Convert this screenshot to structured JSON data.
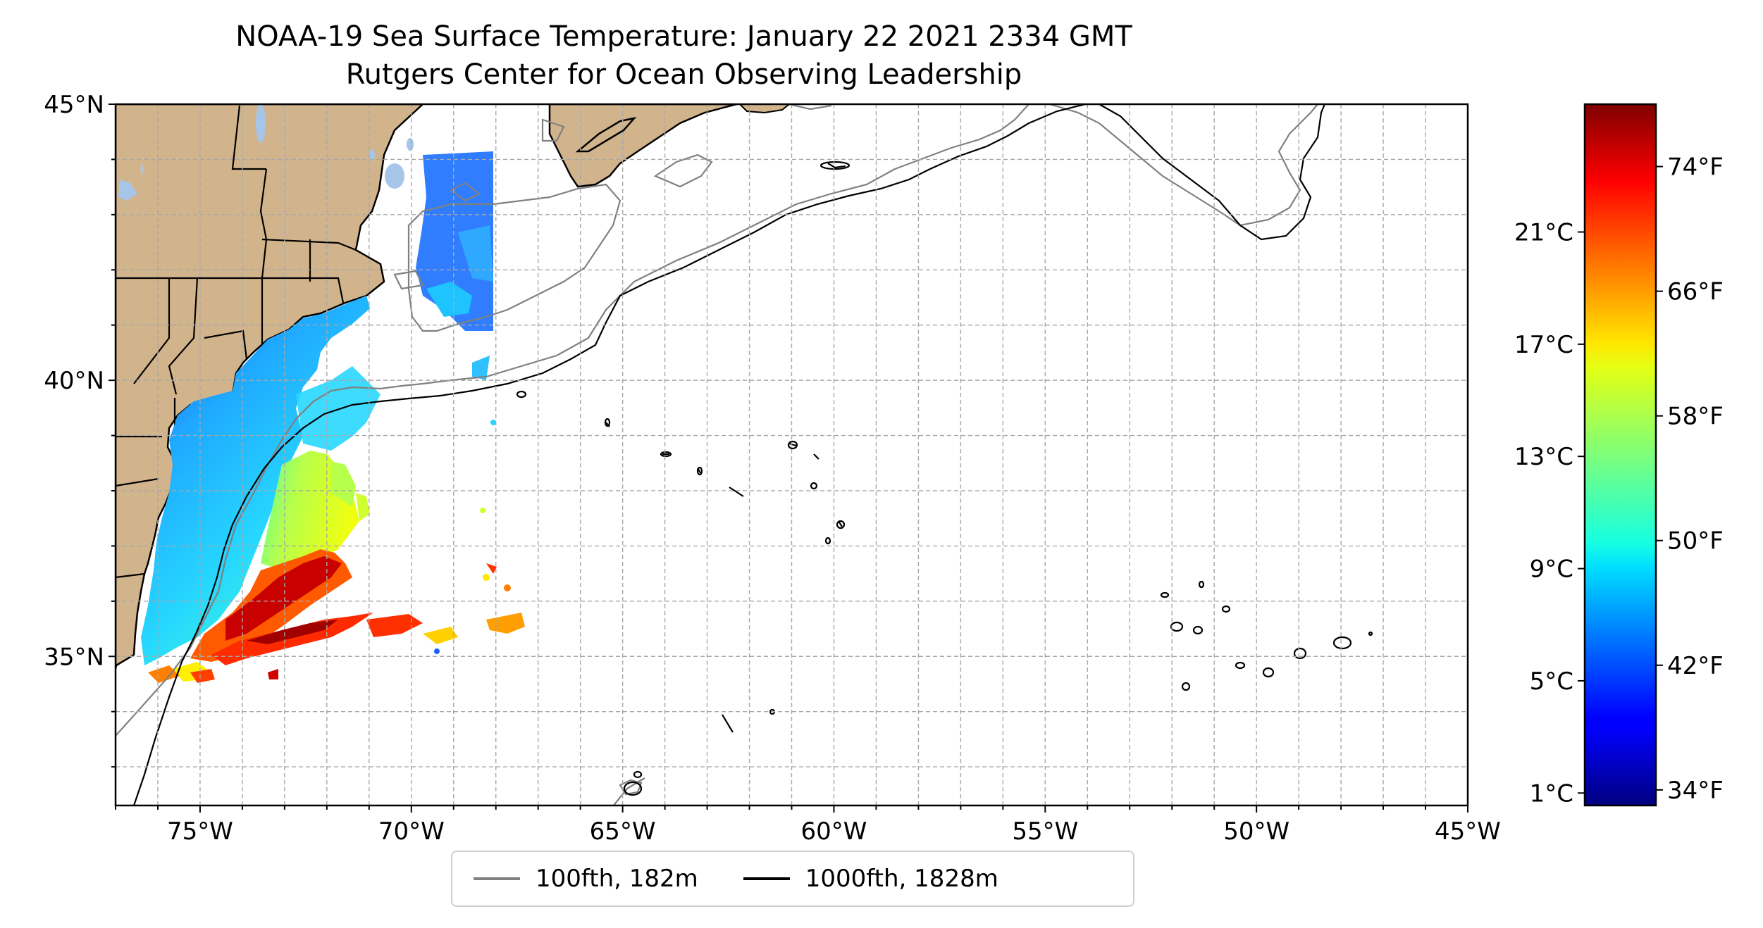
{
  "title": "NOAA-19 Sea Surface Temperature: January 22 2021 2334 GMT",
  "subtitle": "Rutgers Center for Ocean Observing Leadership",
  "map": {
    "lon_range": [
      -77,
      -45
    ],
    "lat_range": [
      32.3,
      45
    ],
    "lat_ticks": [
      {
        "value": 35,
        "label": "35°N"
      },
      {
        "value": 40,
        "label": "40°N"
      },
      {
        "value": 45,
        "label": "45°N"
      }
    ],
    "lon_ticks": [
      {
        "value": -75,
        "label": "75°W"
      },
      {
        "value": -70,
        "label": "70°W"
      },
      {
        "value": -65,
        "label": "65°W"
      },
      {
        "value": -60,
        "label": "60°W"
      },
      {
        "value": -55,
        "label": "55°W"
      },
      {
        "value": -50,
        "label": "50°W"
      },
      {
        "value": -45,
        "label": "45°W"
      }
    ],
    "gridlines": "dashed, every 1 degree",
    "land_color": "#d2b48c",
    "lake_color": "#a6c5e8"
  },
  "colorbar": {
    "colormap": "jet",
    "range_f": [
      33,
      78
    ],
    "celsius_ticks": [
      {
        "value": 1,
        "label": "1°C"
      },
      {
        "value": 5,
        "label": "5°C"
      },
      {
        "value": 9,
        "label": "9°C"
      },
      {
        "value": 13,
        "label": "13°C"
      },
      {
        "value": 17,
        "label": "17°C"
      },
      {
        "value": 21,
        "label": "21°C"
      }
    ],
    "fahrenheit_ticks": [
      {
        "value": 34,
        "label": "34°F"
      },
      {
        "value": 42,
        "label": "42°F"
      },
      {
        "value": 50,
        "label": "50°F"
      },
      {
        "value": 58,
        "label": "58°F"
      },
      {
        "value": 66,
        "label": "66°F"
      },
      {
        "value": 74,
        "label": "74°F"
      }
    ]
  },
  "legend": {
    "placement": "bottom-center",
    "items": [
      {
        "label": "100fth, 182m",
        "color": "#808080"
      },
      {
        "label": "1000fth, 1828m",
        "color": "#000000"
      }
    ]
  }
}
